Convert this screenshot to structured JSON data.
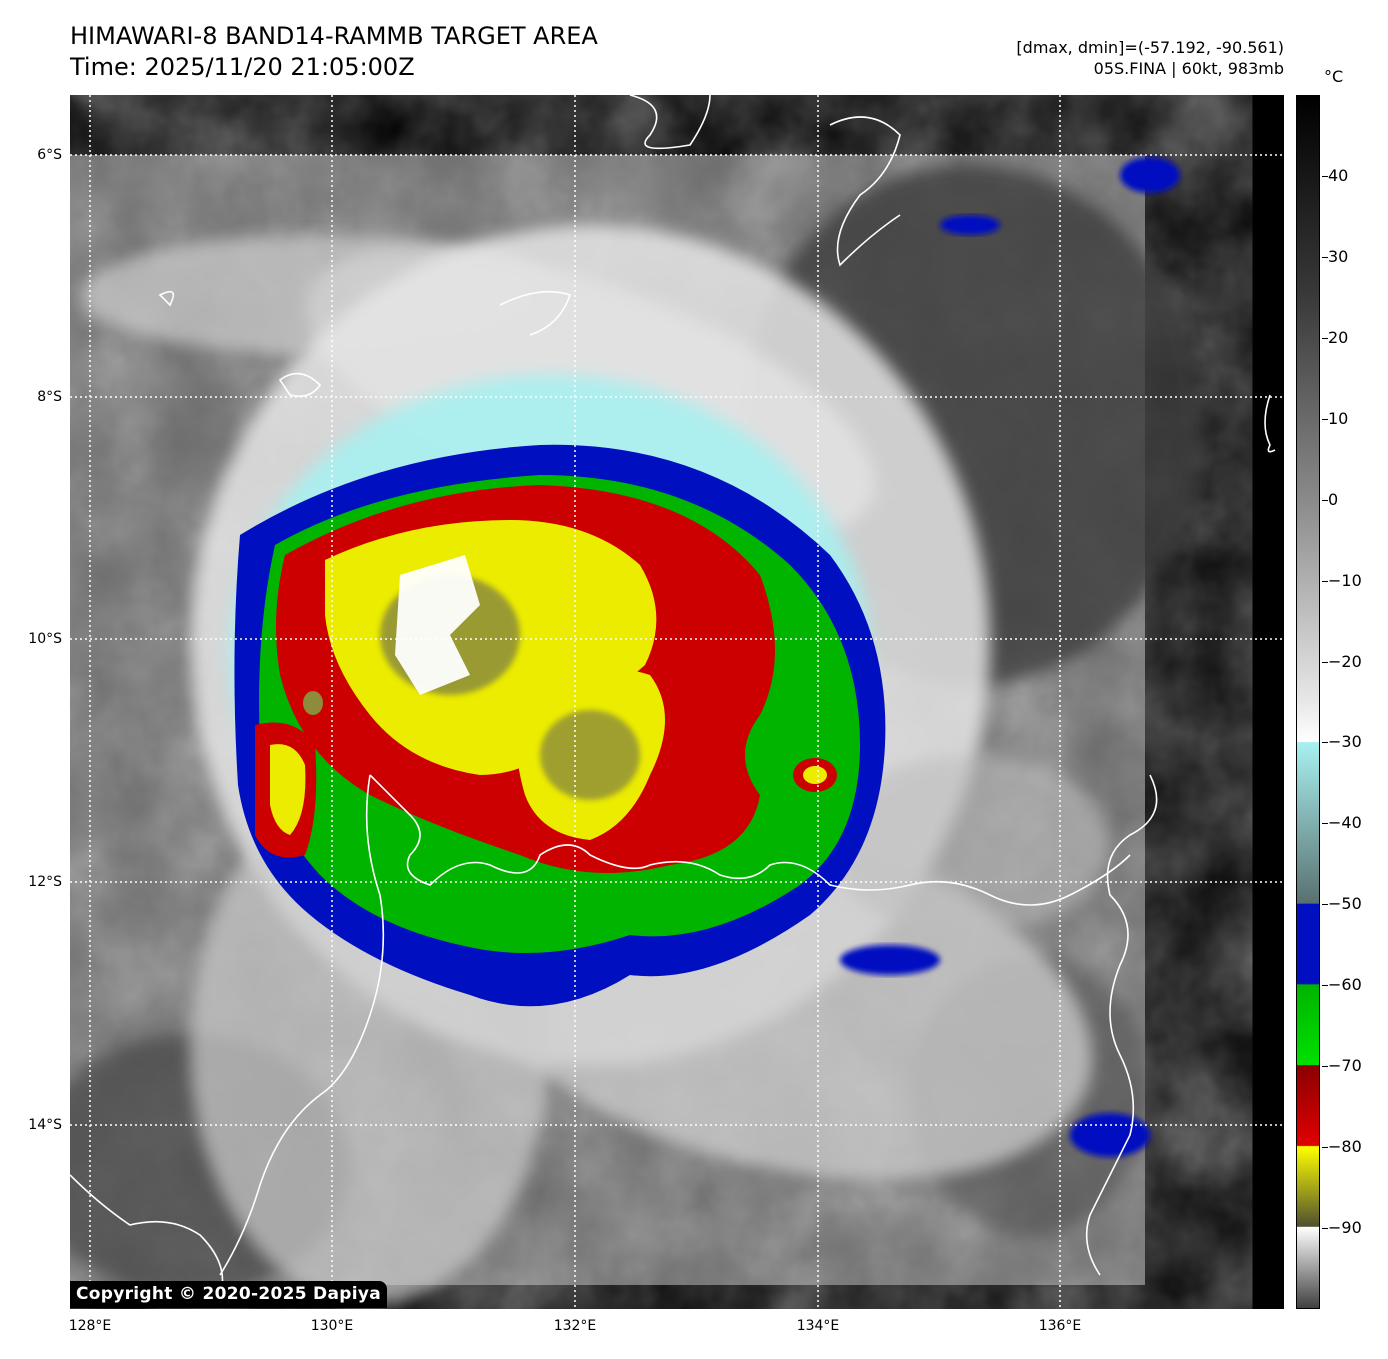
{
  "header": {
    "title_line1": "HIMAWARI-8 BAND14-RAMMB TARGET AREA",
    "title_line2": "Time: 2025/11/20 21:05:00Z",
    "info_line1": "[dmax, dmin]=(-57.192, -90.561)",
    "info_line2": "05S.FINA | 60kt, 983mb"
  },
  "map": {
    "lat_labels": [
      "6°S",
      "8°S",
      "10°S",
      "12°S",
      "14°S"
    ],
    "lon_labels": [
      "128°E",
      "130°E",
      "132°E",
      "134°E",
      "136°E"
    ],
    "copyright": "Copyright © 2020-2025 Dapiya"
  },
  "colorbar": {
    "unit": "°C",
    "tick_labels": [
      "40",
      "30",
      "20",
      "10",
      "0",
      "−10",
      "−20",
      "−30",
      "−40",
      "−50",
      "−60",
      "−70",
      "−80",
      "−90"
    ],
    "range_c": [
      -100,
      50
    ]
  }
}
